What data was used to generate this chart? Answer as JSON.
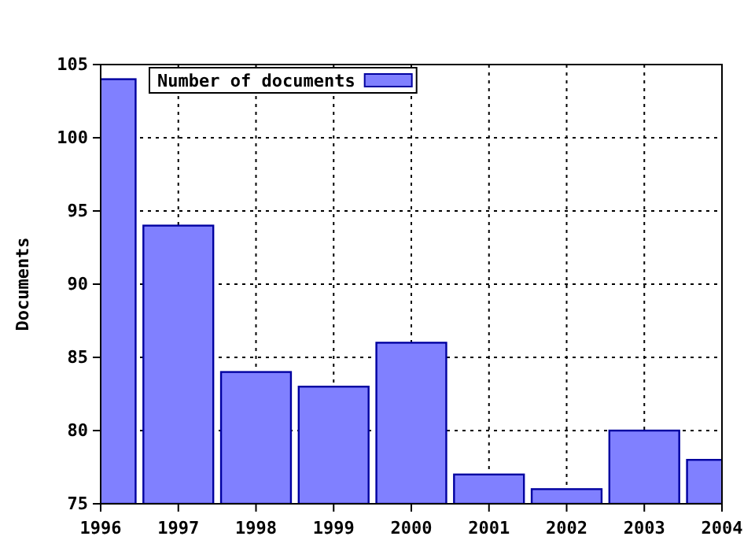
{
  "chart_data": {
    "type": "bar",
    "ylabel": "Documents",
    "x": [
      1996,
      1997,
      1998,
      1999,
      2000,
      2001,
      2002,
      2003,
      2004
    ],
    "series": [
      {
        "name": "Number of documents",
        "color": "#8080ff",
        "values": [
          104,
          94,
          84,
          83,
          86,
          77,
          76,
          80,
          78
        ]
      }
    ],
    "xlim": [
      1996,
      2004
    ],
    "xticks": [
      1996,
      1997,
      1998,
      1999,
      2000,
      2001,
      2002,
      2003,
      2004
    ],
    "ylim": [
      75,
      105
    ],
    "yticks": [
      75,
      80,
      85,
      90,
      95,
      100,
      105
    ],
    "grid": true,
    "legend": "top left"
  }
}
